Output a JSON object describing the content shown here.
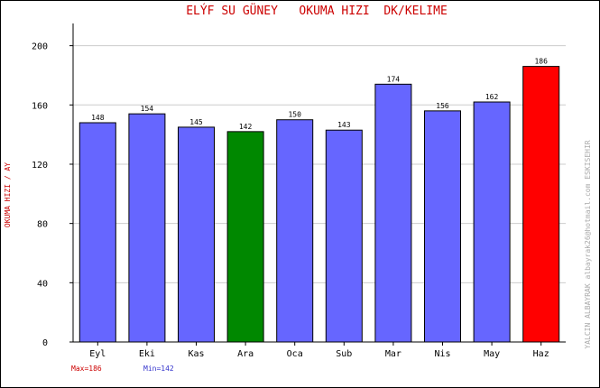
{
  "chart_data": {
    "type": "bar",
    "title": "ELÝF SU GÜNEY   OKUMA HIZI  DK/KELIME",
    "ylabel": "OKUMA HIZI / AY",
    "xlabel": "",
    "categories": [
      "Eyl",
      "Eki",
      "Kas",
      "Ara",
      "Oca",
      "Sub",
      "Mar",
      "Nis",
      "May",
      "Haz"
    ],
    "values": [
      148,
      154,
      145,
      142,
      150,
      143,
      174,
      156,
      162,
      186
    ],
    "ylim": [
      0,
      215
    ],
    "yticks": [
      0,
      40,
      80,
      120,
      160,
      200
    ],
    "grid": true,
    "colors": {
      "default": "#6666ff",
      "min": "#008800",
      "max": "#ff0000",
      "title": "#cc0000",
      "max_text": "#cc0000",
      "min_text": "#3333cc",
      "side_text": "#aaaaaa"
    },
    "min_label": "Min=142",
    "max_label": "Max=186",
    "side_text": "YALCIN ALBAYRAK  albayrak26@hotmail.com  ESKISEHIR"
  }
}
